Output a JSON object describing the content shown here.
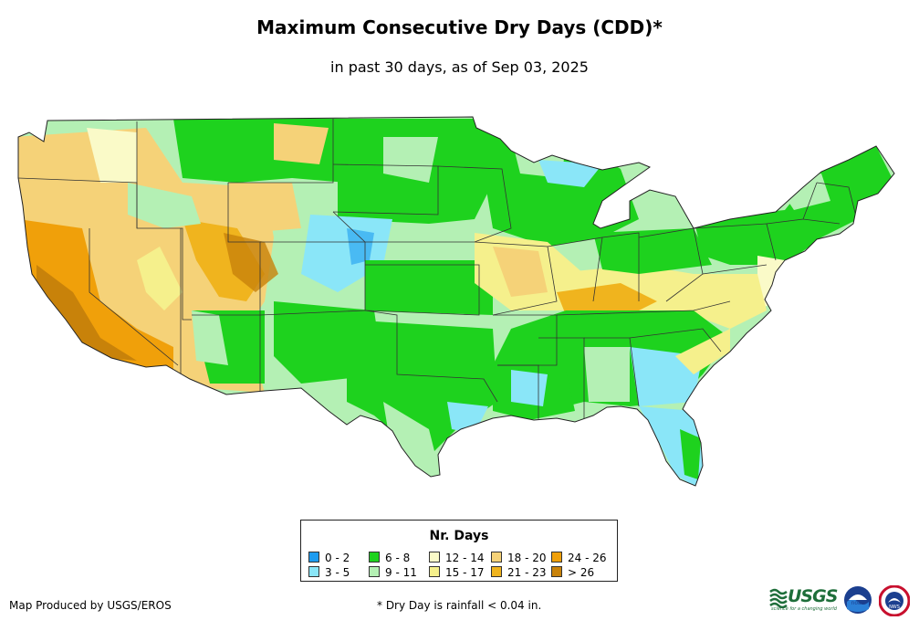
{
  "header": {
    "title": "Maximum Consecutive Dry Days (CDD)*",
    "subtitle": "in past 30 days, as of Sep 03, 2025"
  },
  "legend": {
    "title": "Nr. Days",
    "items": [
      {
        "label": "0 - 2",
        "color": "#1e9cf0"
      },
      {
        "label": "3 - 5",
        "color": "#8ae6f8"
      },
      {
        "label": "6 - 8",
        "color": "#1ed21e"
      },
      {
        "label": "9 - 11",
        "color": "#b4f0b4"
      },
      {
        "label": "12 - 14",
        "color": "#fafac8"
      },
      {
        "label": "15 - 17",
        "color": "#f5f08c"
      },
      {
        "label": "18 - 20",
        "color": "#f5d278"
      },
      {
        "label": "21 - 23",
        "color": "#f0b41e"
      },
      {
        "label": "24 - 26",
        "color": "#f0a00a"
      },
      {
        "label": "> 26",
        "color": "#c8820a"
      }
    ]
  },
  "footer": {
    "credit": "Map Produced by USGS/EROS",
    "note": "* Dry Day is rainfall < 0.04 in."
  },
  "logos": {
    "usgs": "USGS",
    "usgs_tagline": "science for a changing world",
    "noaa": "noaa",
    "nws": "NWS"
  }
}
